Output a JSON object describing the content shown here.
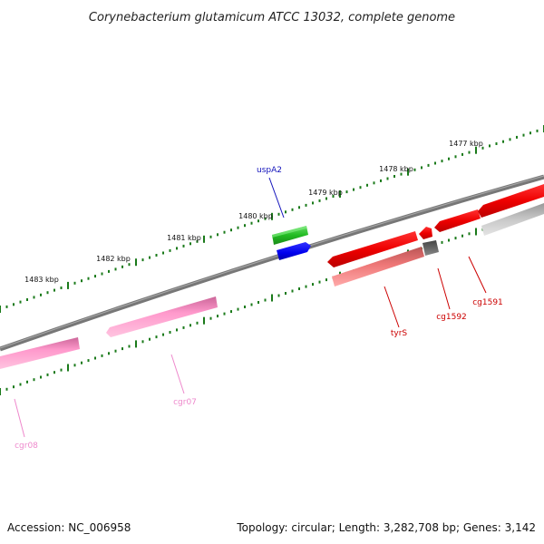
{
  "title": "Corynebacterium glutamicum ATCC 13032, complete genome",
  "footer": {
    "accession": "Accession: NC_006958",
    "topology": "Topology: circular; Length: 3,282,708 bp; Genes: 3,142"
  },
  "scale": {
    "unit": "kbp",
    "ticks": [
      "1477 kbp",
      "1478 kbp",
      "1479 kbp",
      "1480 kbp",
      "1481 kbp",
      "1482 kbp",
      "1483 kbp"
    ]
  },
  "colors": {
    "backbone": "#777777",
    "tick": "#1a7a1a",
    "cds_green": "#33bb33",
    "cds_blue": "#1111dd",
    "cds_red": "#ee1111",
    "cds_salmon": "#ee7777",
    "cds_gray": "#666666",
    "cds_lightgray": "#c0c0c0",
    "rna_pink": "#ff99cc",
    "label_blue": "#1111bb",
    "label_red": "#cc0000",
    "label_pink": "#ee88cc"
  },
  "genes": [
    {
      "name": "uspA2",
      "strand": "outer",
      "color": "cds_green"
    },
    {
      "name": "",
      "strand": "outer",
      "color": "cds_blue"
    },
    {
      "name": "",
      "strand": "outer",
      "color": "cds_red"
    },
    {
      "name": "",
      "strand": "outer",
      "color": "cds_red"
    },
    {
      "name": "",
      "strand": "outer",
      "color": "cds_red"
    },
    {
      "name": "",
      "strand": "outer",
      "color": "cds_red"
    },
    {
      "name": "tyrS",
      "strand": "inner",
      "color": "cds_salmon"
    },
    {
      "name": "cg1592",
      "strand": "inner",
      "color": "cds_gray"
    },
    {
      "name": "cg1591",
      "strand": "inner",
      "color": "cds_lightgray"
    },
    {
      "name": "cgr07",
      "strand": "inner",
      "color": "rna_pink"
    },
    {
      "name": "cgr08",
      "strand": "inner",
      "color": "rna_pink"
    }
  ],
  "labels": {
    "uspA2": "uspA2",
    "tyrS": "tyrS",
    "cg1592": "cg1592",
    "cg1591": "cg1591",
    "cgr07": "cgr07",
    "cgr08": "cgr08"
  }
}
